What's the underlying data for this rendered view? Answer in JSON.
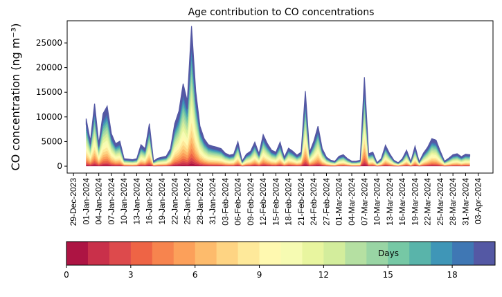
{
  "chart_data": {
    "type": "area",
    "stacked": true,
    "title": "Age contribution to CO concentrations",
    "xlabel": "",
    "ylabel": "CO concentration (ng m⁻³)",
    "ylim": [
      -1400,
      29500
    ],
    "yticks": [
      0,
      5000,
      10000,
      15000,
      20000,
      25000
    ],
    "x_start_date": "01-Jan-2024",
    "x_step_days": 1,
    "xlim_days_from_29Dec2023": [
      -1.5,
      99.5
    ],
    "xtick_labels": [
      "29-Dec-2023",
      "01-Jan-2024",
      "04-Jan-2024",
      "07-Jan-2024",
      "10-Jan-2024",
      "13-Jan-2024",
      "16-Jan-2024",
      "19-Jan-2024",
      "22-Jan-2024",
      "25-Jan-2024",
      "28-Jan-2024",
      "31-Jan-2024",
      "03-Feb-2024",
      "06-Feb-2024",
      "09-Feb-2024",
      "12-Feb-2024",
      "15-Feb-2024",
      "18-Feb-2024",
      "21-Feb-2024",
      "24-Feb-2024",
      "27-Feb-2024",
      "01-Mar-2024",
      "04-Mar-2024",
      "07-Mar-2024",
      "10-Mar-2024",
      "13-Mar-2024",
      "16-Mar-2024",
      "19-Mar-2024",
      "22-Mar-2024",
      "25-Mar-2024",
      "28-Mar-2024",
      "31-Mar-2024",
      "03-Apr-2024"
    ],
    "total": [
      9500,
      5000,
      12500,
      4500,
      10500,
      12000,
      6500,
      4500,
      5000,
      1500,
      1400,
      1300,
      1500,
      4300,
      3500,
      8500,
      1000,
      1600,
      1800,
      2000,
      3500,
      8500,
      11000,
      16500,
      13000,
      28000,
      15000,
      8000,
      5500,
      4300,
      4000,
      3800,
      3500,
      2600,
      2200,
      2400,
      4900,
      1000,
      2400,
      3000,
      4800,
      2500,
      6300,
      4500,
      3200,
      2800,
      4800,
      1800,
      3600,
      3000,
      2200,
      2800,
      15000,
      2800,
      5000,
      8000,
      3500,
      1800,
      1200,
      1000,
      2000,
      2300,
      1500,
      1000,
      1000,
      1200,
      17800,
      2500,
      2800,
      700,
      1500,
      4200,
      2500,
      1200,
      700,
      1500,
      3200,
      900,
      4000,
      900,
      2600,
      3800,
      5500,
      5200,
      3000,
      1000,
      1600,
      2300,
      2500,
      1900,
      2400,
      2300
    ],
    "band_fraction": [
      0.02,
      0.02,
      0.025,
      0.03,
      0.035,
      0.04,
      0.045,
      0.05,
      0.055,
      0.06,
      0.06,
      0.06,
      0.06,
      0.055,
      0.055,
      0.05,
      0.05,
      0.05,
      0.07,
      0.125
    ],
    "colorbar": {
      "label": "Days",
      "range": [
        0,
        20
      ],
      "ticks": [
        "0",
        "3",
        "6",
        "9",
        "12",
        "15",
        "18"
      ],
      "colors": [
        "#ad1443",
        "#c9304a",
        "#dd4a4c",
        "#ee6445",
        "#f7844e",
        "#fca05a",
        "#fdbb6c",
        "#fed483",
        "#fee99a",
        "#fff9b0",
        "#f6fbb2",
        "#e8f59f",
        "#d3ed9c",
        "#b5e0a2",
        "#99d5a4",
        "#76c8a5",
        "#59b4aa",
        "#3f96b7",
        "#3f77b4",
        "#5458a4"
      ]
    }
  }
}
